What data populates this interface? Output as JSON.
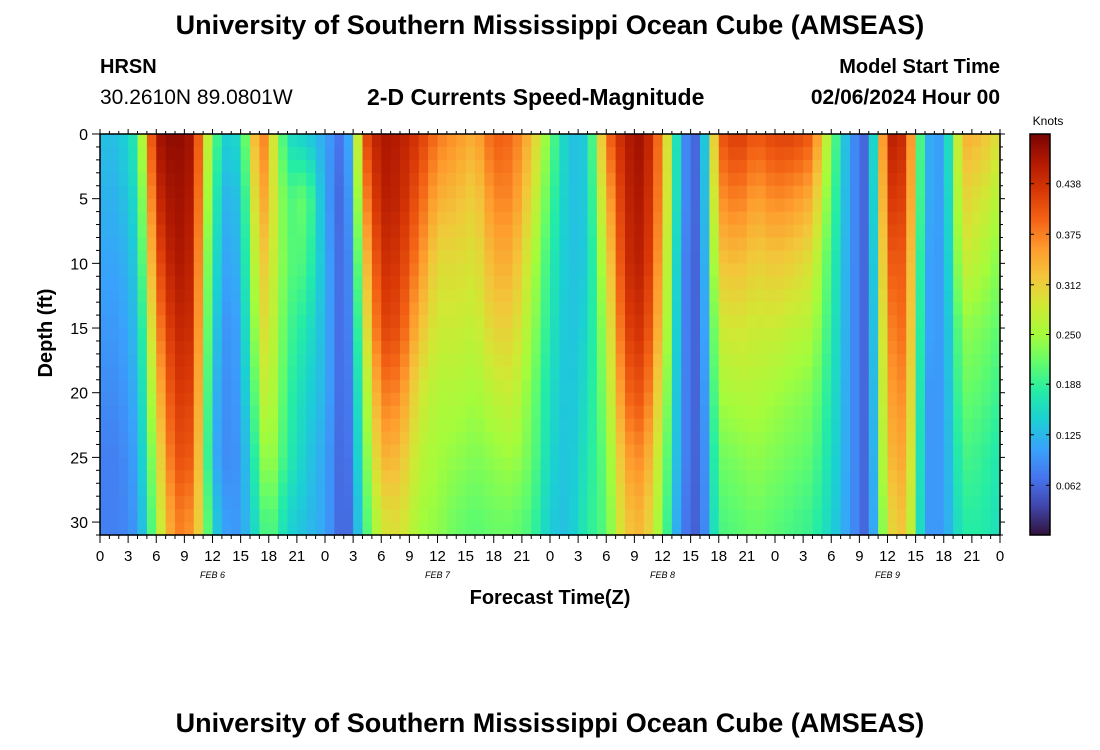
{
  "header": {
    "title": "University of Southern Mississippi Ocean Cube (AMSEAS)",
    "station": "HRSN",
    "coords": "30.2610N  89.0801W",
    "subtitle": "2-D Currents Speed-Magnitude",
    "start_label": "Model Start Time",
    "start_value": "02/06/2024 Hour 00"
  },
  "footer": {
    "title": "University of Southern Mississippi Ocean Cube (AMSEAS)"
  },
  "chart_data": {
    "type": "heatmap",
    "title": "2-D Currents Speed-Magnitude",
    "xlabel": "Forecast Time(Z)",
    "ylabel": "Depth (ft)",
    "x_unit": "forecast hour",
    "xlim": [
      0,
      96
    ],
    "ylim": [
      31,
      0
    ],
    "x_ticks": [
      {
        "hour": 0,
        "label": "0"
      },
      {
        "hour": 3,
        "label": "3"
      },
      {
        "hour": 6,
        "label": "6"
      },
      {
        "hour": 9,
        "label": "9"
      },
      {
        "hour": 12,
        "label": "12"
      },
      {
        "hour": 15,
        "label": "15"
      },
      {
        "hour": 18,
        "label": "18"
      },
      {
        "hour": 21,
        "label": "21"
      },
      {
        "hour": 24,
        "label": "0"
      },
      {
        "hour": 27,
        "label": "3"
      },
      {
        "hour": 30,
        "label": "6"
      },
      {
        "hour": 33,
        "label": "9"
      },
      {
        "hour": 36,
        "label": "12"
      },
      {
        "hour": 39,
        "label": "15"
      },
      {
        "hour": 42,
        "label": "18"
      },
      {
        "hour": 45,
        "label": "21"
      },
      {
        "hour": 48,
        "label": "0"
      },
      {
        "hour": 51,
        "label": "3"
      },
      {
        "hour": 54,
        "label": "6"
      },
      {
        "hour": 57,
        "label": "9"
      },
      {
        "hour": 60,
        "label": "12"
      },
      {
        "hour": 63,
        "label": "15"
      },
      {
        "hour": 66,
        "label": "18"
      },
      {
        "hour": 69,
        "label": "21"
      },
      {
        "hour": 72,
        "label": "0"
      },
      {
        "hour": 75,
        "label": "3"
      },
      {
        "hour": 78,
        "label": "6"
      },
      {
        "hour": 81,
        "label": "9"
      },
      {
        "hour": 84,
        "label": "12"
      },
      {
        "hour": 87,
        "label": "15"
      },
      {
        "hour": 90,
        "label": "18"
      },
      {
        "hour": 93,
        "label": "21"
      },
      {
        "hour": 96,
        "label": "0"
      }
    ],
    "day_labels": [
      {
        "hour": 12,
        "label": "FEB 6"
      },
      {
        "hour": 36,
        "label": "FEB 7"
      },
      {
        "hour": 60,
        "label": "FEB 8"
      },
      {
        "hour": 84,
        "label": "FEB 9"
      }
    ],
    "y_ticks": [
      0,
      5,
      10,
      15,
      20,
      25,
      30
    ],
    "colorbar": {
      "label": "Knots",
      "range": [
        0.0,
        0.5
      ],
      "ticks": [
        "0.062",
        "0.125",
        "0.188",
        "0.250",
        "0.312",
        "0.375",
        "0.438"
      ],
      "colors": [
        "#30123b",
        "#4145ab",
        "#4675ed",
        "#39a2fc",
        "#1bcfd4",
        "#24eca6",
        "#61fc6c",
        "#a4fc3b",
        "#d1e834",
        "#f3c63a",
        "#fe9b2d",
        "#f36315",
        "#d93806",
        "#b11901",
        "#7a0403"
      ]
    },
    "depths_ft": [
      0,
      5,
      10,
      15,
      20,
      25,
      30
    ],
    "hours": [
      0,
      2,
      4,
      5,
      6,
      8,
      10,
      11,
      12,
      14,
      16,
      17,
      18,
      20,
      22,
      24,
      26,
      27,
      28,
      30,
      32,
      34,
      36,
      38,
      40,
      42,
      44,
      46,
      48,
      50,
      52,
      54,
      56,
      58,
      60,
      62,
      64,
      66,
      68,
      70,
      72,
      74,
      76,
      78,
      80,
      82,
      84,
      86,
      88,
      90,
      92,
      94,
      96
    ],
    "speed_knots": [
      [
        0.13,
        0.12,
        0.11,
        0.1,
        0.09,
        0.08,
        0.08
      ],
      [
        0.13,
        0.12,
        0.11,
        0.1,
        0.09,
        0.08,
        0.08
      ],
      [
        0.18,
        0.16,
        0.14,
        0.13,
        0.12,
        0.11,
        0.1
      ],
      [
        0.34,
        0.3,
        0.27,
        0.23,
        0.2,
        0.18,
        0.16
      ],
      [
        0.47,
        0.44,
        0.4,
        0.36,
        0.32,
        0.28,
        0.25
      ],
      [
        0.49,
        0.48,
        0.47,
        0.45,
        0.43,
        0.41,
        0.38
      ],
      [
        0.47,
        0.46,
        0.45,
        0.44,
        0.42,
        0.4,
        0.36
      ],
      [
        0.33,
        0.31,
        0.29,
        0.28,
        0.27,
        0.26,
        0.27
      ],
      [
        0.22,
        0.19,
        0.17,
        0.15,
        0.13,
        0.12,
        0.15
      ],
      [
        0.12,
        0.1,
        0.09,
        0.08,
        0.08,
        0.08,
        0.09
      ],
      [
        0.25,
        0.22,
        0.2,
        0.18,
        0.16,
        0.14,
        0.13
      ],
      [
        0.41,
        0.37,
        0.33,
        0.3,
        0.26,
        0.22,
        0.18
      ],
      [
        0.33,
        0.32,
        0.3,
        0.29,
        0.28,
        0.26,
        0.22
      ],
      [
        0.16,
        0.2,
        0.21,
        0.2,
        0.19,
        0.18,
        0.15
      ],
      [
        0.14,
        0.22,
        0.2,
        0.17,
        0.15,
        0.14,
        0.13
      ],
      [
        0.11,
        0.11,
        0.12,
        0.12,
        0.12,
        0.11,
        0.11
      ],
      [
        0.06,
        0.05,
        0.05,
        0.05,
        0.05,
        0.05,
        0.05
      ],
      [
        0.16,
        0.14,
        0.12,
        0.11,
        0.1,
        0.09,
        0.08
      ],
      [
        0.4,
        0.35,
        0.3,
        0.26,
        0.22,
        0.2,
        0.18
      ],
      [
        0.47,
        0.46,
        0.44,
        0.42,
        0.38,
        0.34,
        0.29
      ],
      [
        0.46,
        0.45,
        0.43,
        0.41,
        0.37,
        0.33,
        0.3
      ],
      [
        0.43,
        0.4,
        0.37,
        0.33,
        0.29,
        0.27,
        0.25
      ],
      [
        0.38,
        0.34,
        0.3,
        0.28,
        0.26,
        0.25,
        0.24
      ],
      [
        0.36,
        0.33,
        0.3,
        0.28,
        0.26,
        0.24,
        0.22
      ],
      [
        0.34,
        0.31,
        0.29,
        0.27,
        0.25,
        0.23,
        0.21
      ],
      [
        0.4,
        0.37,
        0.34,
        0.31,
        0.27,
        0.24,
        0.22
      ],
      [
        0.39,
        0.37,
        0.34,
        0.31,
        0.28,
        0.25,
        0.22
      ],
      [
        0.33,
        0.3,
        0.27,
        0.25,
        0.23,
        0.22,
        0.2
      ],
      [
        0.22,
        0.2,
        0.18,
        0.17,
        0.16,
        0.15,
        0.14
      ],
      [
        0.13,
        0.13,
        0.13,
        0.13,
        0.13,
        0.13,
        0.13
      ],
      [
        0.14,
        0.14,
        0.14,
        0.15,
        0.16,
        0.17,
        0.18
      ],
      [
        0.38,
        0.33,
        0.29,
        0.26,
        0.24,
        0.22,
        0.21
      ],
      [
        0.46,
        0.45,
        0.44,
        0.42,
        0.39,
        0.35,
        0.32
      ],
      [
        0.48,
        0.47,
        0.46,
        0.44,
        0.41,
        0.37,
        0.34
      ],
      [
        0.36,
        0.35,
        0.33,
        0.31,
        0.28,
        0.25,
        0.23
      ],
      [
        0.1,
        0.1,
        0.09,
        0.09,
        0.09,
        0.09,
        0.08
      ],
      [
        0.05,
        0.05,
        0.05,
        0.05,
        0.05,
        0.05,
        0.05
      ],
      [
        0.4,
        0.36,
        0.32,
        0.28,
        0.25,
        0.22,
        0.2
      ],
      [
        0.43,
        0.38,
        0.33,
        0.29,
        0.26,
        0.23,
        0.21
      ],
      [
        0.4,
        0.35,
        0.31,
        0.28,
        0.26,
        0.24,
        0.22
      ],
      [
        0.42,
        0.37,
        0.32,
        0.28,
        0.25,
        0.23,
        0.21
      ],
      [
        0.42,
        0.36,
        0.31,
        0.27,
        0.24,
        0.22,
        0.2
      ],
      [
        0.4,
        0.34,
        0.29,
        0.26,
        0.23,
        0.21,
        0.19
      ],
      [
        0.23,
        0.21,
        0.19,
        0.18,
        0.17,
        0.16,
        0.15
      ],
      [
        0.1,
        0.1,
        0.1,
        0.1,
        0.1,
        0.1,
        0.1
      ],
      [
        0.05,
        0.05,
        0.05,
        0.05,
        0.05,
        0.05,
        0.05
      ],
      [
        0.46,
        0.43,
        0.4,
        0.37,
        0.35,
        0.33,
        0.3
      ],
      [
        0.44,
        0.42,
        0.4,
        0.39,
        0.37,
        0.35,
        0.33
      ],
      [
        0.12,
        0.12,
        0.11,
        0.11,
        0.1,
        0.1,
        0.1
      ],
      [
        0.1,
        0.1,
        0.1,
        0.1,
        0.1,
        0.1,
        0.1
      ],
      [
        0.34,
        0.31,
        0.28,
        0.24,
        0.22,
        0.2,
        0.18
      ],
      [
        0.33,
        0.29,
        0.26,
        0.23,
        0.21,
        0.19,
        0.18
      ],
      [
        0.29,
        0.26,
        0.23,
        0.21,
        0.19,
        0.17,
        0.16
      ]
    ]
  }
}
